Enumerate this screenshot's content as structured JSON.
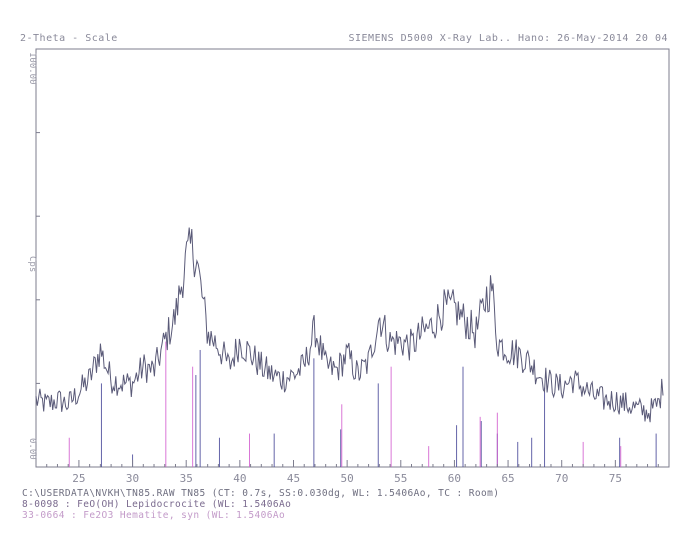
{
  "header": {
    "left": "2-Theta - Scale",
    "right": "SIEMENS D5000  X-Ray Lab.. Hano: 26-May-2014 20 04"
  },
  "footer": {
    "line1": "C:\\USERDATA\\NVKH\\TN85.RAW TN85 (CT:  0.7s, SS:0.030dg, WL: 1.5406Ao, TC : Room)",
    "line2": " 8-0098 : FeO(OH) Lepidocrocite (WL: 1.5406Ao",
    "line3": "33-0664 : Fe2O3 Hematite, syn (WL: 1.5406Ao"
  },
  "chart_data": {
    "type": "line",
    "title": "",
    "xlabel": "2-Theta - Scale",
    "ylabel": "Cps",
    "xlim": [
      21,
      80
    ],
    "ylim": [
      0,
      100
    ],
    "x_ticks": [
      25,
      30,
      35,
      40,
      45,
      50,
      55,
      60,
      65,
      70,
      75
    ],
    "y_tick_labels": [
      "100.00",
      "0.00"
    ],
    "grid": false,
    "series": [
      {
        "name": "TN85 (CT: 0.7s, SS:0.030dg, WL: 1.5406Ao, TC : Room)",
        "color": "#5a5a78",
        "x": [
          21,
          22,
          23,
          24,
          25,
          26,
          27,
          28,
          29,
          30,
          31,
          32,
          33,
          34,
          35,
          35.5,
          36,
          37,
          38,
          39,
          40,
          41,
          42,
          43,
          44,
          45,
          46,
          47,
          48,
          49,
          50,
          51,
          52,
          53,
          54,
          55,
          56,
          57,
          58,
          59,
          60,
          61,
          62,
          63,
          63.5,
          64,
          65,
          66,
          67,
          68,
          69,
          70,
          71,
          72,
          73,
          74,
          75,
          76,
          77,
          78,
          79,
          79.5
        ],
        "y": [
          16,
          15,
          16,
          15,
          18,
          21,
          28,
          21,
          20,
          20,
          24,
          23,
          30,
          36,
          50,
          53,
          49,
          32,
          29,
          24,
          30,
          27,
          24,
          22,
          21,
          22,
          24,
          33,
          24,
          23,
          27,
          22,
          25,
          36,
          30,
          30,
          29,
          32,
          34,
          38,
          38,
          35,
          32,
          41,
          43,
          30,
          28,
          27,
          25,
          22,
          20,
          19,
          21,
          19,
          17,
          16,
          16,
          15,
          14,
          13,
          15,
          20
        ]
      }
    ],
    "reference_patterns": [
      {
        "name": "8-0098 : FeO(OH) Lepidocrocite (WL: 1.5406Ao",
        "color": "#4a4a9a",
        "peaks": [
          [
            27.1,
            20
          ],
          [
            30.0,
            3
          ],
          [
            35.9,
            22
          ],
          [
            36.3,
            28
          ],
          [
            38.1,
            7
          ],
          [
            43.2,
            8
          ],
          [
            46.9,
            26
          ],
          [
            49.4,
            9
          ],
          [
            52.9,
            20
          ],
          [
            60.2,
            10
          ],
          [
            60.8,
            24
          ],
          [
            62.5,
            11
          ],
          [
            64.0,
            8
          ],
          [
            65.9,
            6
          ],
          [
            67.2,
            7
          ],
          [
            68.4,
            19
          ],
          [
            75.4,
            7
          ],
          [
            78.8,
            8
          ]
        ]
      },
      {
        "name": "33-0664 : Fe2O3 Hematite, syn (WL: 1.5406Ao",
        "color": "#d35fcf",
        "peaks": [
          [
            24.1,
            7
          ],
          [
            33.1,
            30
          ],
          [
            35.6,
            24
          ],
          [
            40.9,
            8
          ],
          [
            49.5,
            15
          ],
          [
            54.1,
            24
          ],
          [
            57.6,
            5
          ],
          [
            62.4,
            12
          ],
          [
            64.0,
            13
          ],
          [
            72.0,
            6
          ],
          [
            75.5,
            5
          ]
        ]
      }
    ]
  }
}
